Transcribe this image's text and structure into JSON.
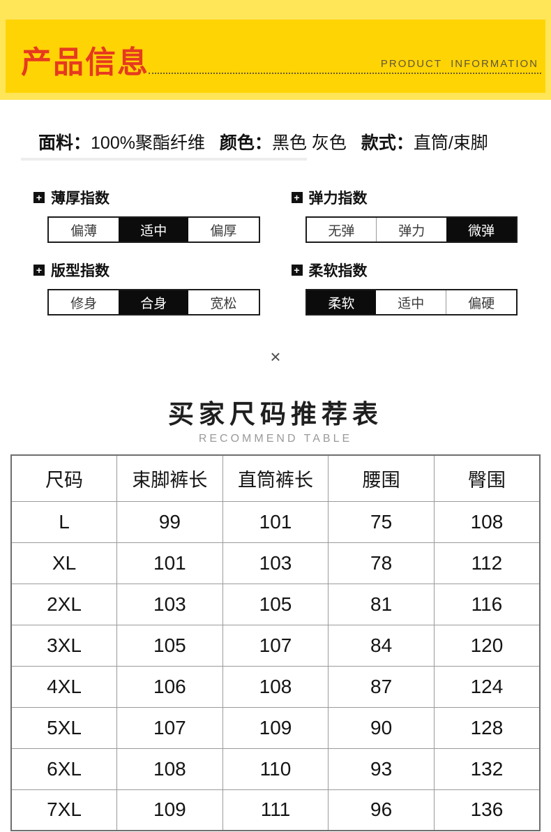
{
  "header": {
    "title": "产品信息",
    "subtitle": "PRODUCT  INFORMATION",
    "outer_bg": "#ffe558",
    "inner_bg": "#ffd405",
    "title_color": "#e63a1f"
  },
  "fabric": {
    "label_material": "面料：",
    "value_material": "100%聚酯纤维",
    "label_color": "颜色：",
    "value_color": "黑色 灰色",
    "label_style": "款式：",
    "value_style": "直筒/束脚"
  },
  "icons": {
    "plus_square": "+",
    "multiply": "×"
  },
  "indices": [
    {
      "title": "薄厚指数",
      "options": [
        "偏薄",
        "适中",
        "偏厚"
      ],
      "selected": "适中"
    },
    {
      "title": "弹力指数",
      "options": [
        "无弹",
        "弹力",
        "微弹"
      ],
      "selected": "微弹"
    },
    {
      "title": "版型指数",
      "options": [
        "修身",
        "合身",
        "宽松"
      ],
      "selected": "合身"
    },
    {
      "title": "柔软指数",
      "options": [
        "柔软",
        "适中",
        "偏硬"
      ],
      "selected": "柔软"
    }
  ],
  "size_table": {
    "title": "买家尺码推荐表",
    "subtitle": "RECOMMEND TABLE",
    "headers": [
      "尺码",
      "束脚裤长",
      "直筒裤长",
      "腰围",
      "臀围"
    ],
    "rows": [
      [
        "L",
        "99",
        "101",
        "75",
        "108"
      ],
      [
        "XL",
        "101",
        "103",
        "78",
        "112"
      ],
      [
        "2XL",
        "103",
        "105",
        "81",
        "116"
      ],
      [
        "3XL",
        "105",
        "107",
        "84",
        "120"
      ],
      [
        "4XL",
        "106",
        "108",
        "87",
        "124"
      ],
      [
        "5XL",
        "107",
        "109",
        "90",
        "128"
      ],
      [
        "6XL",
        "108",
        "110",
        "93",
        "132"
      ],
      [
        "7XL",
        "109",
        "111",
        "96",
        "136"
      ]
    ]
  }
}
